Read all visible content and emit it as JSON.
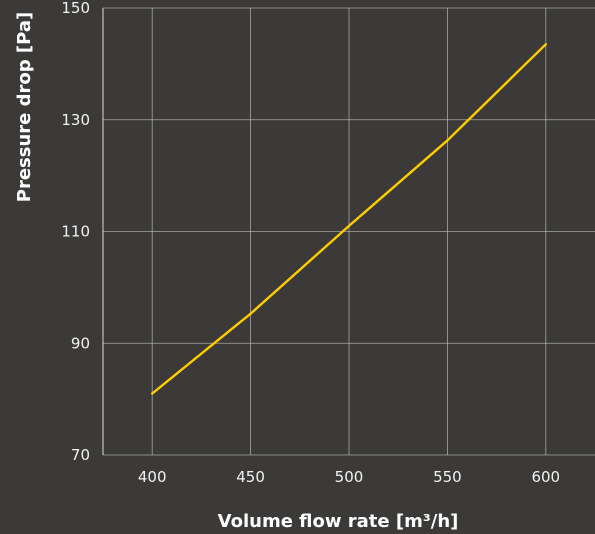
{
  "chart_data": {
    "type": "line",
    "title": "",
    "xlabel": "Volume flow rate [m³/h]",
    "ylabel": "Pressure drop [Pa]",
    "xlim": [
      375,
      625
    ],
    "ylim": [
      70,
      150
    ],
    "xticks": [
      400,
      450,
      500,
      550,
      600
    ],
    "yticks": [
      70,
      90,
      110,
      130,
      150
    ],
    "grid": true,
    "legend": "none",
    "colors": {
      "background": "#3b3a38",
      "series": "#ffcc00",
      "grid": "#c9c9c9",
      "text": "#f2f2f2"
    },
    "series": [
      {
        "x": [
          400,
          450,
          500,
          550,
          600
        ],
        "y": [
          81,
          95.3,
          111,
          126.3,
          143.5
        ]
      }
    ]
  }
}
